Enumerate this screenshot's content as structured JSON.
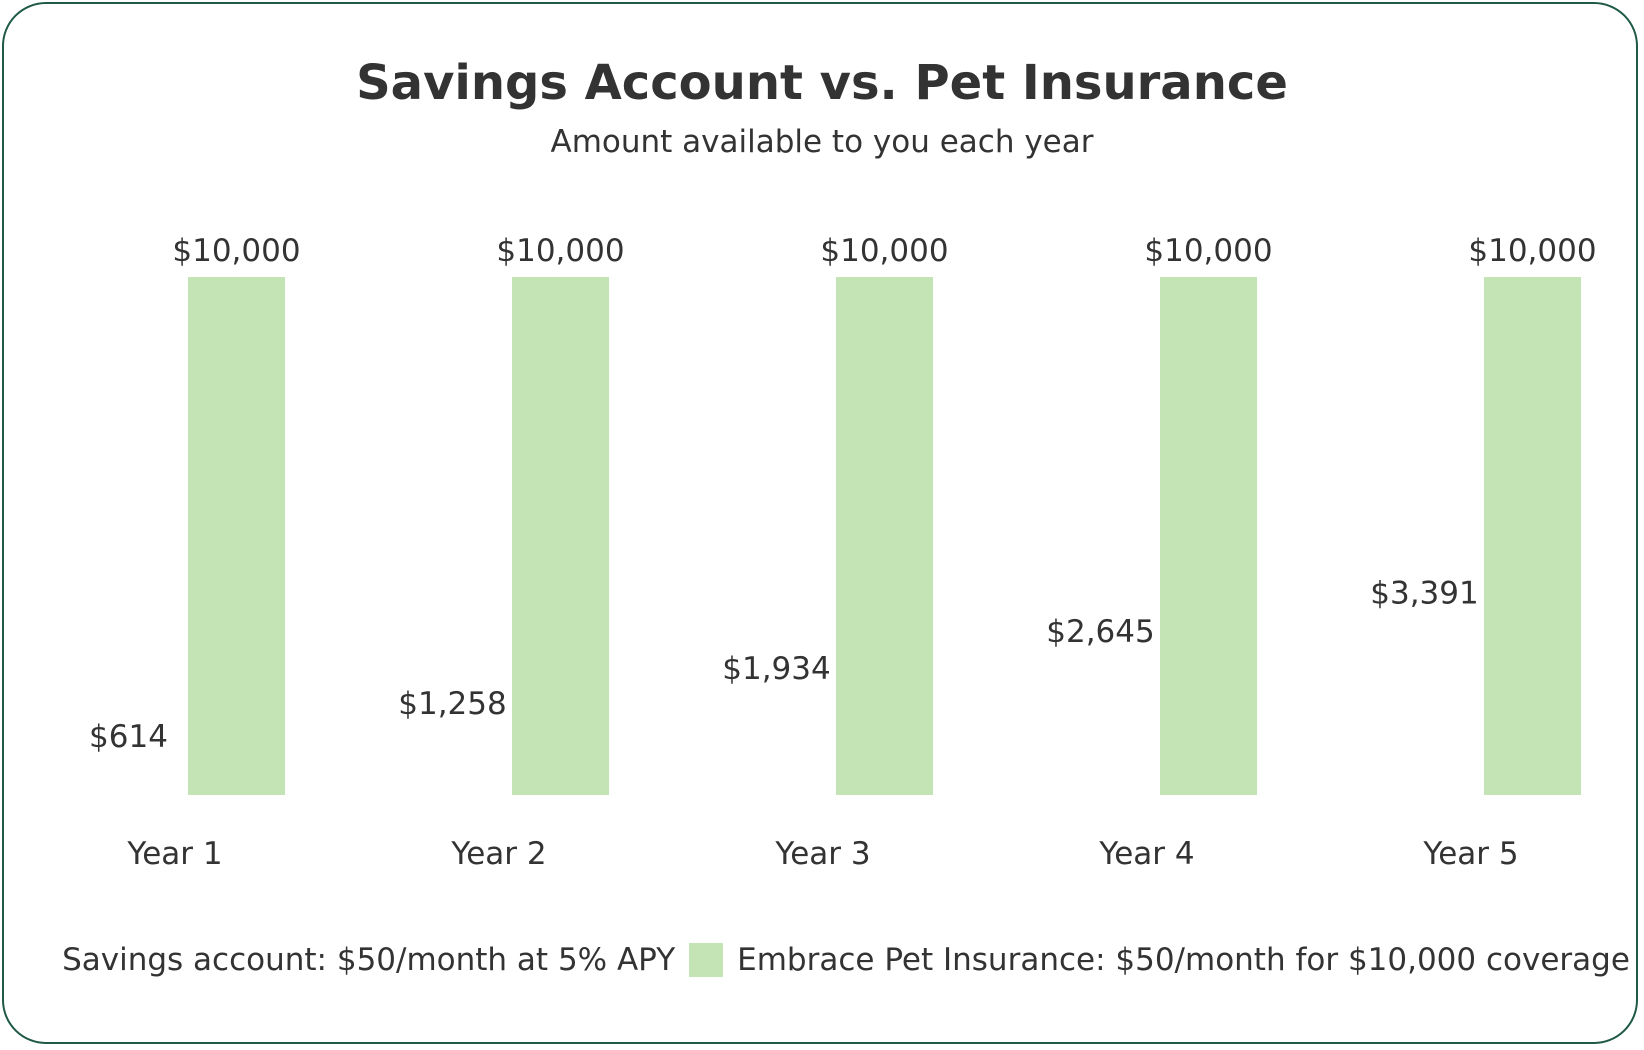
{
  "chart_data": {
    "type": "bar",
    "title": "Savings Account vs. Pet Insurance",
    "subtitle": "Amount available to you each year",
    "categories": [
      "Year 1",
      "Year 2",
      "Year 3",
      "Year 4",
      "Year 5"
    ],
    "series": [
      {
        "name": "Savings account: $50/month at 5% APY",
        "values": [
          614,
          1258,
          1934,
          2645,
          3391
        ],
        "labels": [
          "$614",
          "$1,258",
          "$1,934",
          "$2,645",
          "$3,391"
        ],
        "color": "#ffffff"
      },
      {
        "name": "Embrace Pet Insurance: $50/month for $10,000 coverage",
        "values": [
          10000,
          10000,
          10000,
          10000,
          10000
        ],
        "labels": [
          "$10,000",
          "$10,000",
          "$10,000",
          "$10,000",
          "$10,000"
        ],
        "color": "#c5e4b6"
      }
    ],
    "ylim": [
      0,
      10000
    ],
    "grid": false,
    "legend": "bottom",
    "border_color": "#1f5a45"
  }
}
